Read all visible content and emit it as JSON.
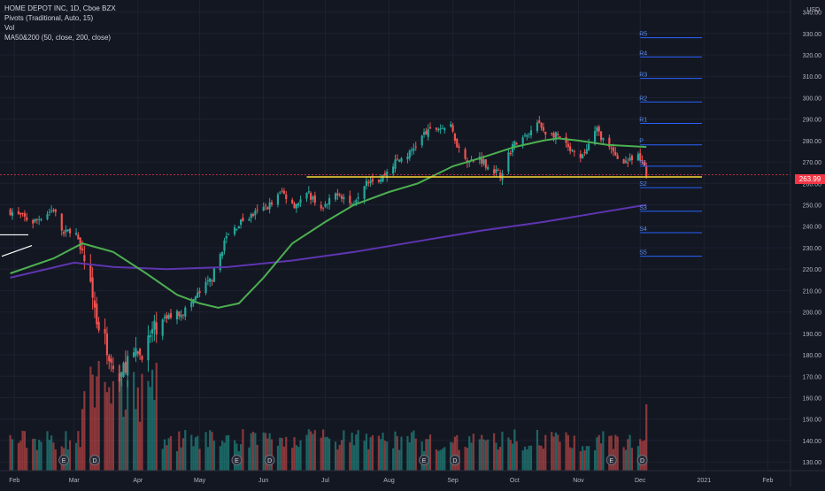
{
  "legend": {
    "symbol": "HOME DEPOT INC, 1D, Cboe BZX",
    "pivots": "Pivots (Traditional, Auto, 15)",
    "vol": "Vol",
    "ma": "MA50&200 (50, close, 200, close)"
  },
  "price_axis": {
    "currency": "USD",
    "last_price": "263.99",
    "tick_labels": [
      "340.00",
      "330.00",
      "320.00",
      "310.00",
      "300.00",
      "290.00",
      "280.00",
      "270.00",
      "260.00",
      "250.00",
      "240.00",
      "230.00",
      "220.00",
      "210.00",
      "200.00",
      "190.00",
      "180.00",
      "170.00",
      "160.00",
      "150.00",
      "140.00",
      "130.00"
    ]
  },
  "time_axis": {
    "labels": [
      "Feb",
      "Mar",
      "Apr",
      "May",
      "Jun",
      "Jul",
      "Aug",
      "Sep",
      "Oct",
      "Nov",
      "Dec",
      "2021",
      "Feb"
    ]
  },
  "colors": {
    "background": "#131722",
    "grid": "#1e2230",
    "up": "#26a69a",
    "down": "#ef5350",
    "ma50": "#4caf50",
    "ma200": "#5e35b1",
    "pivot": "#2962ff",
    "support": "#fdd835",
    "price_tag": "#f23645"
  },
  "chart_data": {
    "type": "candlestick",
    "title": "HOME DEPOT INC, 1D, Cboe BZX",
    "ylim": [
      123,
      346
    ],
    "x_range": [
      "2020-02-01",
      "2021-02-10"
    ],
    "last_price": 263.99,
    "price_path": [
      [
        "2020-01-30",
        247
      ],
      [
        "2020-02-10",
        242
      ],
      [
        "2020-02-20",
        248
      ],
      [
        "2020-02-25",
        236
      ],
      [
        "2020-03-01",
        240
      ],
      [
        "2020-03-05",
        225
      ],
      [
        "2020-03-09",
        218
      ],
      [
        "2020-03-12",
        195
      ],
      [
        "2020-03-16",
        186
      ],
      [
        "2020-03-20",
        173
      ],
      [
        "2020-03-23",
        168
      ],
      [
        "2020-03-27",
        178
      ],
      [
        "2020-04-02",
        180
      ],
      [
        "2020-04-09",
        192
      ],
      [
        "2020-04-16",
        198
      ],
      [
        "2020-04-23",
        200
      ],
      [
        "2020-04-30",
        208
      ],
      [
        "2020-05-07",
        216
      ],
      [
        "2020-05-14",
        235
      ],
      [
        "2020-05-21",
        242
      ],
      [
        "2020-05-28",
        246
      ],
      [
        "2020-06-04",
        250
      ],
      [
        "2020-06-10",
        256
      ],
      [
        "2020-06-16",
        250
      ],
      [
        "2020-06-23",
        255
      ],
      [
        "2020-06-30",
        248
      ],
      [
        "2020-07-07",
        256
      ],
      [
        "2020-07-14",
        250
      ],
      [
        "2020-07-21",
        262
      ],
      [
        "2020-07-28",
        262
      ],
      [
        "2020-08-04",
        270
      ],
      [
        "2020-08-11",
        274
      ],
      [
        "2020-08-18",
        283
      ],
      [
        "2020-08-25",
        286
      ],
      [
        "2020-08-31",
        286
      ],
      [
        "2020-09-04",
        276
      ],
      [
        "2020-09-09",
        270
      ],
      [
        "2020-09-14",
        272
      ],
      [
        "2020-09-18",
        268
      ],
      [
        "2020-09-24",
        264
      ],
      [
        "2020-09-30",
        278
      ],
      [
        "2020-10-07",
        282
      ],
      [
        "2020-10-12",
        288
      ],
      [
        "2020-10-16",
        284
      ],
      [
        "2020-10-22",
        282
      ],
      [
        "2020-10-28",
        275
      ],
      [
        "2020-11-02",
        271
      ],
      [
        "2020-11-06",
        278
      ],
      [
        "2020-11-10",
        285
      ],
      [
        "2020-11-16",
        276
      ],
      [
        "2020-11-20",
        272
      ],
      [
        "2020-11-25",
        270
      ],
      [
        "2020-11-30",
        272
      ],
      [
        "2020-12-03",
        268
      ],
      [
        "2020-12-04",
        263.99
      ]
    ],
    "ma50": [
      [
        "2020-01-30",
        218
      ],
      [
        "2020-02-20",
        225
      ],
      [
        "2020-03-05",
        232
      ],
      [
        "2020-03-20",
        228
      ],
      [
        "2020-04-05",
        218
      ],
      [
        "2020-04-20",
        208
      ],
      [
        "2020-05-01",
        204
      ],
      [
        "2020-05-10",
        202
      ],
      [
        "2020-05-20",
        204
      ],
      [
        "2020-06-01",
        216
      ],
      [
        "2020-06-15",
        232
      ],
      [
        "2020-07-01",
        242
      ],
      [
        "2020-07-15",
        250
      ],
      [
        "2020-08-01",
        256
      ],
      [
        "2020-08-15",
        260
      ],
      [
        "2020-09-01",
        268
      ],
      [
        "2020-09-15",
        272
      ],
      [
        "2020-10-01",
        277
      ],
      [
        "2020-10-15",
        280
      ],
      [
        "2020-10-22",
        281
      ],
      [
        "2020-11-01",
        280
      ],
      [
        "2020-11-15",
        278
      ],
      [
        "2020-12-04",
        277
      ]
    ],
    "ma200": [
      [
        "2020-01-30",
        216
      ],
      [
        "2020-03-01",
        223
      ],
      [
        "2020-03-20",
        221
      ],
      [
        "2020-04-15",
        220
      ],
      [
        "2020-05-15",
        221
      ],
      [
        "2020-06-15",
        224
      ],
      [
        "2020-07-15",
        228
      ],
      [
        "2020-08-15",
        233
      ],
      [
        "2020-09-15",
        238
      ],
      [
        "2020-10-15",
        242
      ],
      [
        "2020-11-15",
        247
      ],
      [
        "2020-12-04",
        250
      ]
    ],
    "pivots": {
      "from": "2020-12-01",
      "to": "2020-12-31",
      "levels": [
        {
          "label": "R5",
          "value": 328
        },
        {
          "label": "R4",
          "value": 319
        },
        {
          "label": "R3",
          "value": 309
        },
        {
          "label": "R2",
          "value": 298
        },
        {
          "label": "R1",
          "value": 288
        },
        {
          "label": "P",
          "value": 278
        },
        {
          "label": "S1",
          "value": 268
        },
        {
          "label": "S2",
          "value": 258
        },
        {
          "label": "S3",
          "value": 247
        },
        {
          "label": "S4",
          "value": 237
        },
        {
          "label": "S5",
          "value": 226
        }
      ]
    },
    "support_line": {
      "value": 263,
      "from": "2020-06-22",
      "to": "2020-12-31"
    },
    "volume": {
      "ylim": [
        0,
        60
      ],
      "note": "relative volume bars along the bottom pane"
    },
    "events": [
      {
        "date": "2020-02-25",
        "label": "E"
      },
      {
        "date": "2020-03-11",
        "label": "D"
      },
      {
        "date": "2020-05-19",
        "label": "E"
      },
      {
        "date": "2020-06-04",
        "label": "D"
      },
      {
        "date": "2020-08-18",
        "label": "E"
      },
      {
        "date": "2020-09-02",
        "label": "D"
      },
      {
        "date": "2020-11-17",
        "label": "E"
      },
      {
        "date": "2020-12-02",
        "label": "D"
      }
    ]
  }
}
